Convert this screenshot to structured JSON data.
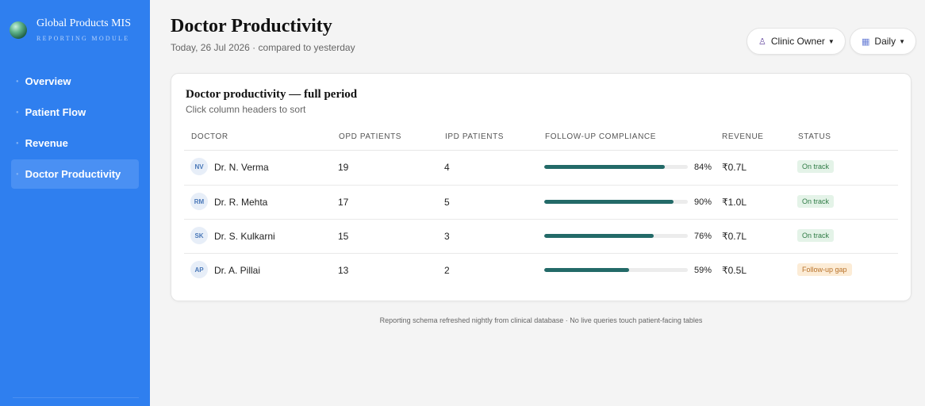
{
  "brand": {
    "title": "Global Products MIS",
    "subtitle": "REPORTING MODULE"
  },
  "sidebar": {
    "items": [
      {
        "label": "Overview",
        "active": false
      },
      {
        "label": "Patient Flow",
        "active": false
      },
      {
        "label": "Revenue",
        "active": false
      },
      {
        "label": "Doctor Productivity",
        "active": true
      }
    ]
  },
  "header": {
    "title": "Doctor Productivity",
    "subtitle": "Today, 26 Jul 2026 · compared to yesterday",
    "role_label": "Clinic Owner",
    "range_label": "Daily"
  },
  "table": {
    "title": "Doctor productivity — full period",
    "hint": "Click column headers to sort",
    "columns": [
      "DOCTOR",
      "OPD PATIENTS",
      "IPD PATIENTS",
      "FOLLOW-UP COMPLIANCE",
      "REVENUE",
      "STATUS"
    ],
    "rows": [
      {
        "initials": "NV",
        "name": "Dr. N. Verma",
        "opd": "19",
        "ipd": "4",
        "compliance": 84,
        "compliance_label": "84%",
        "revenue": "₹0.7L",
        "status": "On track",
        "status_type": "ok"
      },
      {
        "initials": "RM",
        "name": "Dr. R. Mehta",
        "opd": "17",
        "ipd": "5",
        "compliance": 90,
        "compliance_label": "90%",
        "revenue": "₹1.0L",
        "status": "On track",
        "status_type": "ok"
      },
      {
        "initials": "SK",
        "name": "Dr. S. Kulkarni",
        "opd": "15",
        "ipd": "3",
        "compliance": 76,
        "compliance_label": "76%",
        "revenue": "₹0.7L",
        "status": "On track",
        "status_type": "ok"
      },
      {
        "initials": "AP",
        "name": "Dr. A. Pillai",
        "opd": "13",
        "ipd": "2",
        "compliance": 59,
        "compliance_label": "59%",
        "revenue": "₹0.5L",
        "status": "Follow-up gap",
        "status_type": "warn"
      }
    ]
  },
  "footer": {
    "note": "Reporting schema refreshed nightly from clinical database · No live queries touch patient-facing tables"
  },
  "colors": {
    "sidebar": "#2f7fef",
    "bar": "#236a68",
    "ok": "#2f7b45",
    "warn": "#b8722a"
  }
}
